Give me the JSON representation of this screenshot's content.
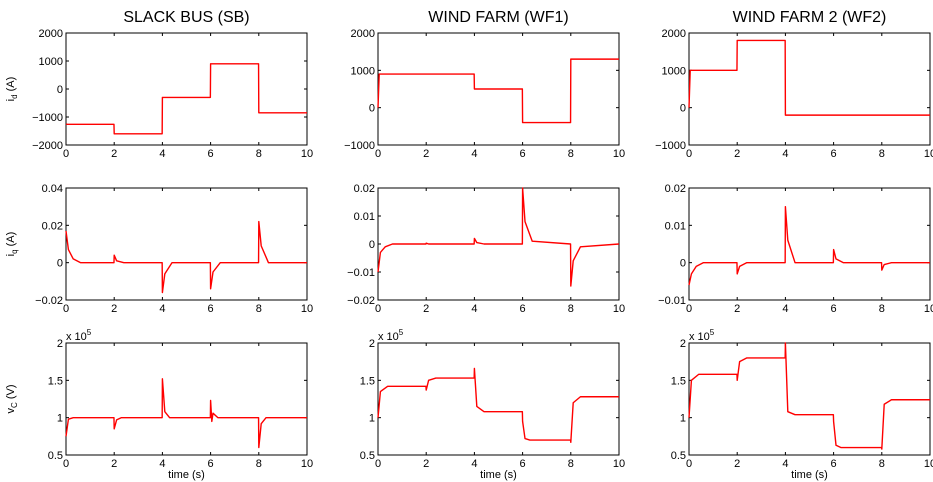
{
  "columns": [
    {
      "title": "SLACK BUS (SB)"
    },
    {
      "title": "WIND FARM (WF1)"
    },
    {
      "title": "WIND FARM 2 (WF2)"
    }
  ],
  "row_labels": [
    {
      "main": "i",
      "sub": "d",
      "unit": " (A)"
    },
    {
      "main": "i",
      "sub": "q",
      "unit": " (A)"
    },
    {
      "main": "v",
      "sub": "C",
      "unit": " (V)"
    }
  ],
  "xlabel": "time (s)",
  "exponent_label": {
    "base": "x 10",
    "power": "5"
  },
  "line_color": "#ff0000",
  "chart_data": [
    {
      "type": "line",
      "title": "SLACK BUS (SB)",
      "ylabel": "i_d (A)",
      "xlim": [
        0,
        10
      ],
      "ylim": [
        -2000,
        2000
      ],
      "x_ticks": [
        "0",
        "2",
        "4",
        "6",
        "8",
        "10"
      ],
      "y_ticks": [
        "2000",
        "1000",
        "0",
        "−1000",
        "−2000"
      ],
      "series": [
        {
          "x": [
            0,
            0.05,
            1.99,
            2.0,
            3.99,
            4.0,
            5.99,
            6.0,
            7.99,
            8.0,
            10.0
          ],
          "y": [
            -1250,
            -1260,
            -1260,
            -1600,
            -1600,
            -300,
            -300,
            900,
            900,
            -850,
            -850
          ]
        }
      ]
    },
    {
      "type": "line",
      "title": "WIND FARM (WF1)",
      "ylabel": "i_d (A)",
      "xlim": [
        0,
        10
      ],
      "ylim": [
        -1000,
        2000
      ],
      "x_ticks": [
        "0",
        "2",
        "4",
        "6",
        "8",
        "10"
      ],
      "y_ticks": [
        "2000",
        "1000",
        "0",
        "−1000"
      ],
      "series": [
        {
          "x": [
            0,
            0.05,
            1.99,
            2.0,
            3.99,
            4.0,
            5.99,
            6.0,
            7.99,
            8.0,
            10.0
          ],
          "y": [
            0,
            900,
            900,
            900,
            900,
            500,
            500,
            -400,
            -400,
            1300,
            1300
          ]
        }
      ]
    },
    {
      "type": "line",
      "title": "WIND FARM 2 (WF2)",
      "ylabel": "i_d (A)",
      "xlim": [
        0,
        10
      ],
      "ylim": [
        -1000,
        2000
      ],
      "x_ticks": [
        "0",
        "2",
        "4",
        "6",
        "8",
        "10"
      ],
      "y_ticks": [
        "2000",
        "1000",
        "0",
        "−1000"
      ],
      "series": [
        {
          "x": [
            0,
            0.05,
            1.99,
            2.0,
            3.99,
            4.0,
            5.99,
            6.0,
            7.99,
            8.0,
            10.0
          ],
          "y": [
            0,
            1000,
            1000,
            1800,
            1800,
            -200,
            -200,
            -200,
            -200,
            -200,
            -200
          ]
        }
      ]
    },
    {
      "type": "line",
      "title": "",
      "ylabel": "i_q (A)",
      "xlim": [
        0,
        10
      ],
      "ylim": [
        -0.02,
        0.04
      ],
      "x_ticks": [
        "0",
        "2",
        "4",
        "6",
        "8",
        "10"
      ],
      "y_ticks": [
        "0.04",
        "0.02",
        "0",
        "−0.02"
      ],
      "series": [
        {
          "x": [
            0,
            0.1,
            0.3,
            0.6,
            1.99,
            2.0,
            2.1,
            2.4,
            3.99,
            4.0,
            4.1,
            4.4,
            5.99,
            6.0,
            6.1,
            6.4,
            7.99,
            8.0,
            8.1,
            8.4,
            10.0
          ],
          "y": [
            0.017,
            0.007,
            0.002,
            0,
            0,
            0.004,
            0.001,
            0,
            0,
            -0.016,
            -0.006,
            0,
            0,
            -0.014,
            -0.005,
            0,
            0,
            0.022,
            0.009,
            0,
            0
          ]
        }
      ]
    },
    {
      "type": "line",
      "title": "",
      "ylabel": "i_q (A)",
      "xlim": [
        0,
        10
      ],
      "ylim": [
        -0.02,
        0.02
      ],
      "x_ticks": [
        "0",
        "2",
        "4",
        "6",
        "8",
        "10"
      ],
      "y_ticks": [
        "0.02",
        "0.01",
        "0",
        "−0.01",
        "−0.02"
      ],
      "series": [
        {
          "x": [
            0,
            0.1,
            0.3,
            0.6,
            1.99,
            2.0,
            2.1,
            3.99,
            4.0,
            4.1,
            4.4,
            5.99,
            6.0,
            6.1,
            6.4,
            7.99,
            8.0,
            8.1,
            8.4,
            10.0
          ],
          "y": [
            -0.01,
            -0.003,
            -0.001,
            0,
            0,
            0.0003,
            0,
            0,
            0.002,
            0.0005,
            0,
            0,
            0.02,
            0.008,
            0.001,
            0,
            -0.015,
            -0.006,
            -0.001,
            0
          ]
        }
      ]
    },
    {
      "type": "line",
      "title": "",
      "ylabel": "i_q (A)",
      "xlim": [
        0,
        10
      ],
      "ylim": [
        -0.01,
        0.02
      ],
      "x_ticks": [
        "0",
        "2",
        "4",
        "6",
        "8",
        "10"
      ],
      "y_ticks": [
        "0.02",
        "0.01",
        "0",
        "−0.01"
      ],
      "series": [
        {
          "x": [
            0,
            0.1,
            0.3,
            0.6,
            1.99,
            2.0,
            2.1,
            2.4,
            3.99,
            4.0,
            4.1,
            4.4,
            5.99,
            6.0,
            6.1,
            6.4,
            7.99,
            8.0,
            8.1,
            8.4,
            10.0
          ],
          "y": [
            -0.006,
            -0.003,
            -0.001,
            0,
            0,
            -0.003,
            -0.001,
            0,
            0,
            0.015,
            0.006,
            0,
            0,
            0.0035,
            0.001,
            0,
            0,
            -0.002,
            -0.0005,
            0,
            0
          ]
        }
      ]
    },
    {
      "type": "line",
      "title": "",
      "ylabel": "v_C (V)",
      "xlabel": "time (s)",
      "xlim": [
        0,
        10
      ],
      "ylim": [
        50000,
        200000
      ],
      "x_ticks": [
        "0",
        "2",
        "4",
        "6",
        "8",
        "10"
      ],
      "y_ticks": [
        "2",
        "1.5",
        "1",
        "0.5"
      ],
      "series": [
        {
          "x": [
            0,
            0.1,
            0.3,
            1.99,
            2.0,
            2.1,
            2.3,
            3.99,
            4.0,
            4.1,
            4.3,
            5.99,
            6.0,
            6.05,
            6.1,
            6.3,
            7.99,
            8.0,
            8.1,
            8.3,
            10.0
          ],
          "y": [
            75000,
            98000,
            100000,
            100000,
            85000,
            97000,
            100000,
            100000,
            152000,
            108000,
            100000,
            100000,
            123000,
            95000,
            106000,
            100000,
            100000,
            60000,
            92000,
            100000,
            100000
          ]
        }
      ]
    },
    {
      "type": "line",
      "title": "",
      "ylabel": "v_C (V)",
      "xlabel": "time (s)",
      "xlim": [
        0,
        10
      ],
      "ylim": [
        50000,
        200000
      ],
      "x_ticks": [
        "0",
        "2",
        "4",
        "6",
        "8",
        "10"
      ],
      "y_ticks": [
        "2",
        "1.5",
        "1",
        "0.5"
      ],
      "series": [
        {
          "x": [
            0,
            0.1,
            0.4,
            1.99,
            2.0,
            2.1,
            2.4,
            3.99,
            4.0,
            4.1,
            4.4,
            5.99,
            6.0,
            6.1,
            6.3,
            7.99,
            8.0,
            8.1,
            8.4,
            10.0
          ],
          "y": [
            100000,
            135000,
            142000,
            142000,
            137000,
            150000,
            153000,
            153000,
            166000,
            115000,
            108000,
            108000,
            95000,
            72000,
            70000,
            70000,
            67000,
            120000,
            128000,
            128000
          ]
        }
      ]
    },
    {
      "type": "line",
      "title": "",
      "ylabel": "v_C (V)",
      "xlabel": "time (s)",
      "xlim": [
        0,
        10
      ],
      "ylim": [
        50000,
        200000
      ],
      "x_ticks": [
        "0",
        "2",
        "4",
        "6",
        "8",
        "10"
      ],
      "y_ticks": [
        "2",
        "1.5",
        "1",
        "0.5"
      ],
      "series": [
        {
          "x": [
            0,
            0.1,
            0.4,
            1.99,
            2.0,
            2.1,
            2.4,
            3.99,
            4.0,
            4.1,
            4.4,
            5.99,
            6.0,
            6.1,
            6.3,
            7.99,
            8.0,
            8.1,
            8.4,
            10.0
          ],
          "y": [
            100000,
            150000,
            158000,
            158000,
            150000,
            175000,
            180000,
            180000,
            200000,
            108000,
            104000,
            104000,
            95000,
            63000,
            60000,
            60000,
            58000,
            118000,
            124000,
            124000
          ]
        }
      ]
    }
  ]
}
